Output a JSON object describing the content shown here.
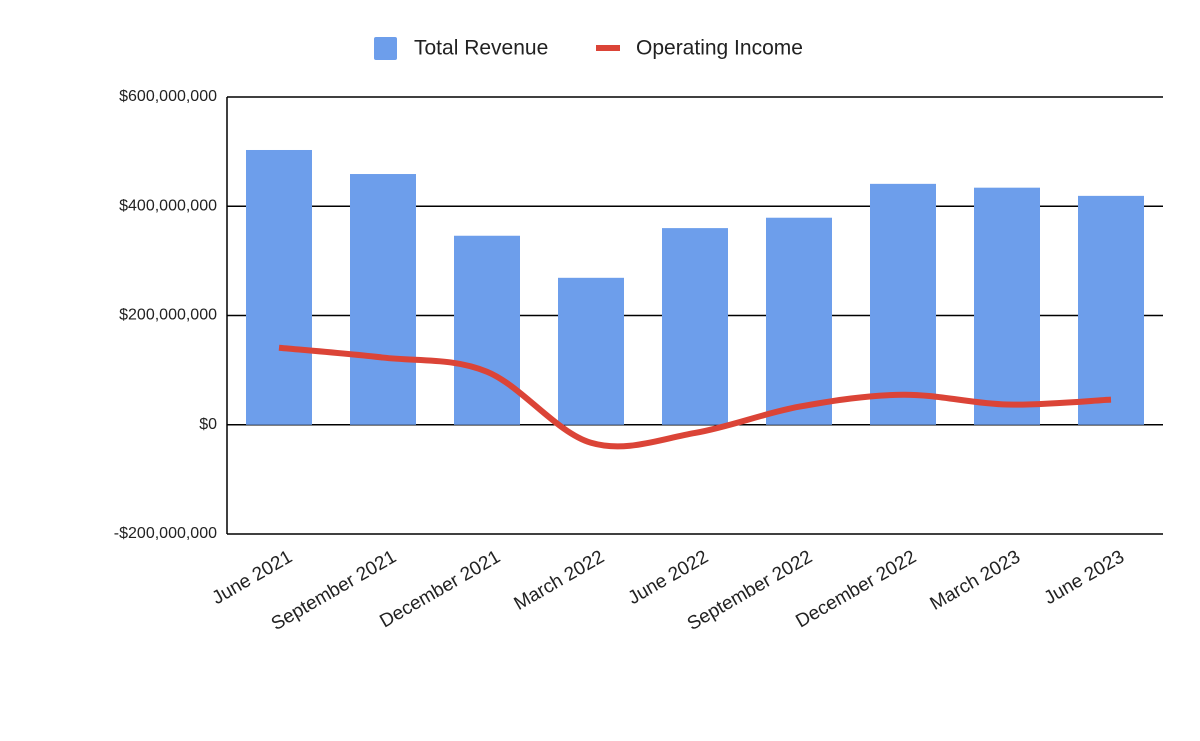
{
  "chart_data": {
    "type": "combo",
    "categories": [
      "June 2021",
      "September 2021",
      "December 2021",
      "March 2022",
      "June 2022",
      "September 2022",
      "December 2022",
      "March 2023",
      "June 2023"
    ],
    "series": [
      {
        "name": "Total Revenue",
        "type": "bar",
        "color": "#6d9eeb",
        "values": [
          503000000,
          459000000,
          346000000,
          269000000,
          360000000,
          379000000,
          441000000,
          434000000,
          419000000
        ]
      },
      {
        "name": "Operating Income",
        "type": "line",
        "color": "#db4437",
        "values": [
          141000000,
          123000000,
          97000000,
          -33000000,
          -15000000,
          33000000,
          55000000,
          37000000,
          46000000
        ]
      }
    ],
    "ylim": [
      -200000000,
      600000000
    ],
    "yticks": [
      {
        "value": -200000000,
        "label": "-$200,000,000"
      },
      {
        "value": 0,
        "label": "$0"
      },
      {
        "value": 200000000,
        "label": "$200,000,000"
      },
      {
        "value": 400000000,
        "label": "$400,000,000"
      },
      {
        "value": 600000000,
        "label": "$600,000,000"
      }
    ],
    "grid": true,
    "legend": "top"
  }
}
